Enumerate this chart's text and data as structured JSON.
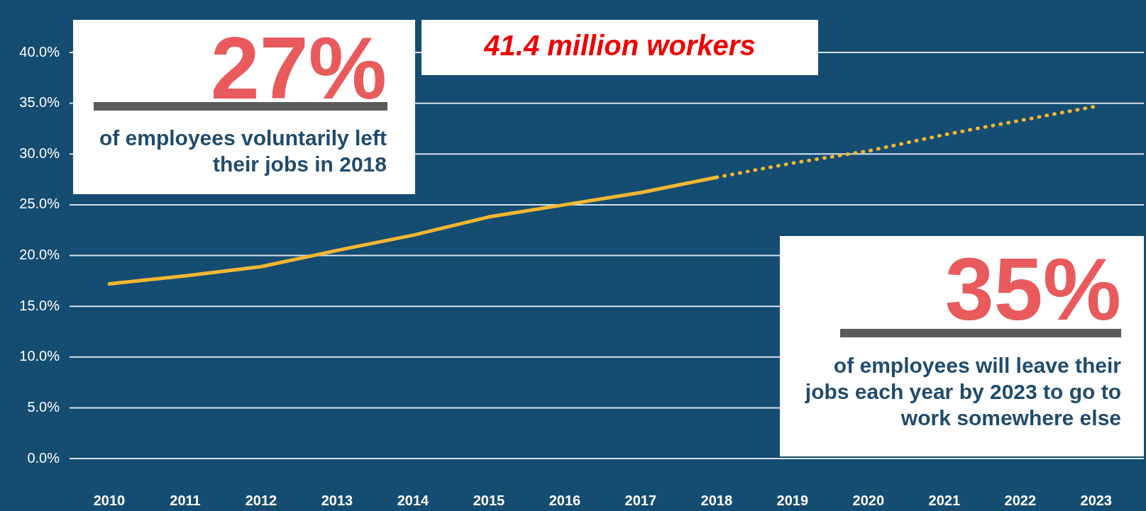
{
  "chart_data": {
    "type": "line",
    "categories": [
      "2010",
      "2011",
      "2012",
      "2013",
      "2014",
      "2015",
      "2016",
      "2017",
      "2018",
      "2019",
      "2020",
      "2021",
      "2022",
      "2023"
    ],
    "series": [
      {
        "color": "#f4b731",
        "line_style": "solid",
        "values": [
          17.2,
          18.0,
          18.9,
          20.5,
          22.0,
          23.8,
          25.0,
          26.2,
          27.7,
          null,
          null,
          null,
          null,
          null
        ]
      },
      {
        "color": "#f4b731",
        "line_style": "dotted",
        "values": [
          null,
          null,
          null,
          null,
          null,
          null,
          null,
          null,
          27.7,
          29.1,
          30.3,
          31.9,
          33.3,
          34.7
        ]
      }
    ],
    "ylim": [
      0,
      40
    ],
    "yticks": [
      {
        "value": 0,
        "label": "0.0%"
      },
      {
        "value": 5,
        "label": "5.0%"
      },
      {
        "value": 10,
        "label": "10.0%"
      },
      {
        "value": 15,
        "label": "15.0%"
      },
      {
        "value": 20,
        "label": "20.0%"
      },
      {
        "value": 25,
        "label": "25.0%"
      },
      {
        "value": 30,
        "label": "30.0%"
      },
      {
        "value": 35,
        "label": "35.0%"
      },
      {
        "value": 40,
        "label": "40.0%"
      }
    ],
    "grid": "y",
    "marker": "none",
    "annotations": [
      "27%",
      "of employees voluntarily left their jobs in 2018",
      "41.4 million workers",
      "35%",
      "of employees will leave their jobs each year by 2023 to go to work somewhere else"
    ]
  }
}
